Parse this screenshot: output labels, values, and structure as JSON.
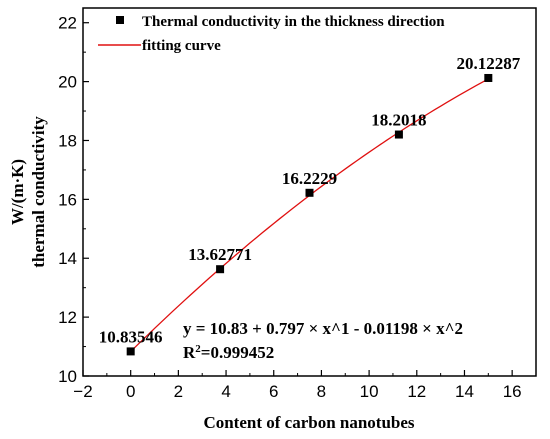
{
  "chart_data": {
    "type": "scatter",
    "xlabel": "Content of carbon nanotubes",
    "ylabel_line1": "W/(m·K)",
    "ylabel_line2": "thermal conductivity",
    "xlim": [
      -2,
      17
    ],
    "ylim": [
      10,
      22.5
    ],
    "xticks": [
      -2,
      0,
      2,
      4,
      6,
      8,
      10,
      12,
      14,
      16
    ],
    "yticks": [
      10,
      12,
      14,
      16,
      18,
      20,
      22
    ],
    "grid": false,
    "legend_position": "top-left",
    "legend": {
      "points": "Thermal conductivity in the thickness direction",
      "curve": "fitting curve"
    },
    "series": [
      {
        "name": "Thermal conductivity in the thickness direction",
        "marker": "square",
        "color": "#000000",
        "x": [
          0,
          3.75,
          7.5,
          11.25,
          15
        ],
        "y": [
          10.83546,
          13.62771,
          16.2229,
          18.2018,
          20.12287
        ]
      },
      {
        "name": "fitting curve",
        "type": "line",
        "color": "#e01010",
        "coefficients": [
          10.83,
          0.797,
          -0.01198
        ],
        "x_range": [
          0,
          15
        ]
      }
    ],
    "data_labels": [
      "10.83546",
      "13.62771",
      "16.2229",
      "18.2018",
      "20.12287"
    ],
    "equation": "y = 10.83 + 0.797 × x^1 - 0.01198 × x^2",
    "r2_prefix": "R",
    "r2_sup": "2",
    "r2_value": "=0.999452"
  }
}
